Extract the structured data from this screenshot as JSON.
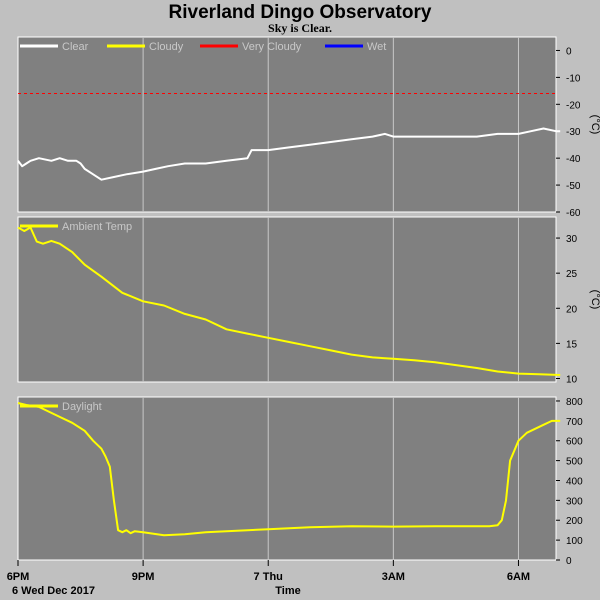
{
  "title": "Riverland Dingo Observatory",
  "subtitle": "Sky is Clear.",
  "x_axis": {
    "label": "Time",
    "ticks": [
      "6PM",
      "9PM",
      "7 Thu",
      "3AM",
      "6AM"
    ],
    "date_label": "6 Wed Dec 2017"
  },
  "colors": {
    "background": "#c0c0c0",
    "plot_bg": "#808080",
    "grid": "#c8c8c8",
    "clear": "#ffffff",
    "cloudy": "#ffff00",
    "very_cloudy": "#ff0000",
    "wet": "#0000ff"
  },
  "chart_data": [
    {
      "type": "line",
      "id": "sky",
      "ylabel": "(°C)",
      "ylim": [
        -60,
        5
      ],
      "yticks": [
        0,
        -10,
        -20,
        -30,
        -40,
        -50,
        -60
      ],
      "legend": [
        "Clear",
        "Cloudy",
        "Very Cloudy",
        "Wet"
      ],
      "threshold": {
        "series": "Very Cloudy",
        "value": -16
      },
      "series": [
        {
          "name": "Clear",
          "x": [
            18.0,
            18.1,
            18.2,
            18.3,
            18.5,
            18.8,
            19.0,
            19.2,
            19.4,
            19.5,
            19.6,
            19.8,
            20.0,
            20.3,
            20.6,
            21.0,
            21.3,
            21.6,
            22.0,
            22.5,
            23.0,
            23.5,
            23.6,
            24.0,
            24.5,
            25.0,
            25.5,
            26.0,
            26.5,
            26.8,
            27.0,
            27.5,
            28.0,
            28.5,
            29.0,
            29.5,
            29.9,
            30.0,
            30.3,
            30.6,
            30.9,
            31.0
          ],
          "y": [
            -41,
            -43,
            -42,
            -41,
            -40,
            -41,
            -40,
            -41,
            -41,
            -42,
            -44,
            -46,
            -48,
            -47,
            -46,
            -45,
            -44,
            -43,
            -42,
            -42,
            -41,
            -40,
            -37,
            -37,
            -36,
            -35,
            -34,
            -33,
            -32,
            -31,
            -32,
            -32,
            -32,
            -32,
            -32,
            -31,
            -31,
            -31,
            -30,
            -29,
            -30,
            -30
          ]
        }
      ]
    },
    {
      "type": "line",
      "id": "ambient",
      "ylabel": "(°C)",
      "ylim": [
        9.5,
        33
      ],
      "yticks": [
        30,
        25,
        20,
        15,
        10
      ],
      "legend": [
        "Ambient Temp"
      ],
      "series": [
        {
          "name": "Ambient Temp",
          "x": [
            18.0,
            18.15,
            18.3,
            18.45,
            18.6,
            18.8,
            19.0,
            19.3,
            19.6,
            20.0,
            20.5,
            21.0,
            21.5,
            22.0,
            22.5,
            23.0,
            23.5,
            24.0,
            24.5,
            25.0,
            25.5,
            26.0,
            26.5,
            27.0,
            27.5,
            28.0,
            28.5,
            29.0,
            29.5,
            30.0,
            30.5,
            31.0
          ],
          "y": [
            31.5,
            31.0,
            31.5,
            29.5,
            29.2,
            29.6,
            29.2,
            28.0,
            26.2,
            24.5,
            22.2,
            21.0,
            20.4,
            19.2,
            18.4,
            17.0,
            16.4,
            15.8,
            15.2,
            14.6,
            14.0,
            13.4,
            13.0,
            12.8,
            12.6,
            12.3,
            11.9,
            11.5,
            11.0,
            10.7,
            10.6,
            10.5
          ]
        }
      ]
    },
    {
      "type": "line",
      "id": "daylight",
      "ylabel": "",
      "ylim": [
        0,
        820
      ],
      "yticks": [
        800,
        700,
        600,
        500,
        400,
        300,
        200,
        100,
        0
      ],
      "legend": [
        "Daylight"
      ],
      "series": [
        {
          "name": "Daylight",
          "x": [
            18.0,
            18.2,
            18.5,
            18.8,
            19.0,
            19.3,
            19.6,
            19.8,
            20.0,
            20.1,
            20.2,
            20.3,
            20.4,
            20.5,
            20.6,
            20.7,
            20.8,
            21.0,
            21.5,
            22.0,
            22.5,
            23.0,
            23.5,
            24.0,
            25.0,
            26.0,
            27.0,
            28.0,
            28.5,
            29.0,
            29.3,
            29.5,
            29.6,
            29.7,
            29.8,
            30.0,
            30.2,
            30.4,
            30.6,
            30.8,
            31.0
          ],
          "y": [
            790,
            780,
            770,
            740,
            720,
            690,
            650,
            600,
            560,
            520,
            470,
            300,
            150,
            140,
            150,
            135,
            145,
            140,
            125,
            130,
            140,
            145,
            150,
            155,
            165,
            170,
            168,
            170,
            170,
            170,
            170,
            175,
            200,
            300,
            500,
            600,
            640,
            660,
            680,
            700,
            700
          ]
        }
      ]
    }
  ]
}
